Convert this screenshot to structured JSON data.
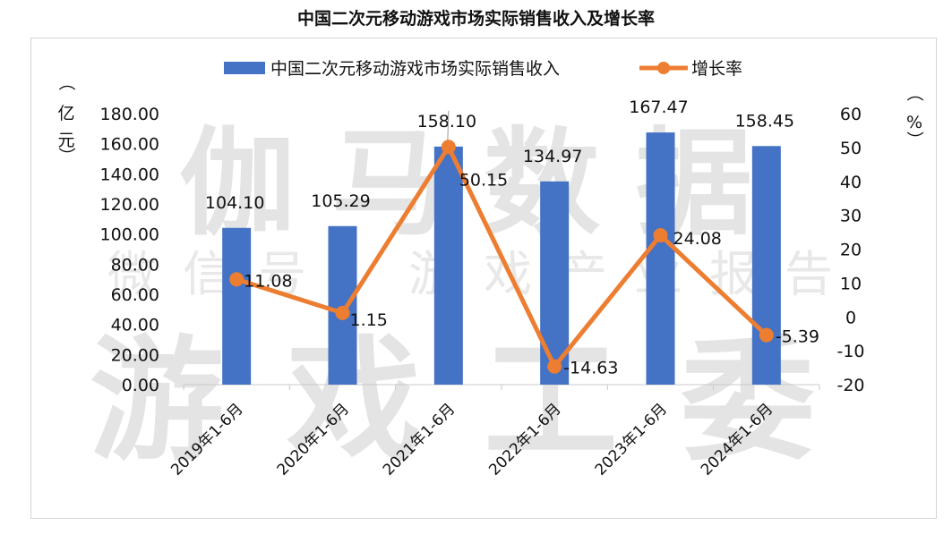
{
  "title": "中国二次元移动游戏市场实际销售收入及增长率",
  "watermark": {
    "line1": "伽马数据",
    "line2": "微信号：游戏产业报告",
    "line3": "游戏工委"
  },
  "units": {
    "left_top": "（",
    "left_chars": [
      "亿",
      "元"
    ],
    "left_bottom": "）",
    "right_top": "（",
    "right_char": "%",
    "right_bottom": "）"
  },
  "chart_data": {
    "type": "bar",
    "title": "中国二次元移动游戏市场实际销售收入及增长率",
    "categories": [
      "2019年1-6月",
      "2020年1-6月",
      "2021年1-6月",
      "2022年1-6月",
      "2023年1-6月",
      "2024年1-6月"
    ],
    "series": [
      {
        "name": "中国二次元移动游戏市场实际销售收入",
        "type": "bar",
        "axis": "left",
        "values": [
          104.1,
          105.29,
          158.1,
          134.97,
          167.47,
          158.45
        ],
        "labels": [
          "104.10",
          "105.29",
          "158.10",
          "134.97",
          "167.47",
          "158.45"
        ],
        "color": "#4472c4"
      },
      {
        "name": "增长率",
        "type": "line",
        "axis": "right",
        "values": [
          11.08,
          1.15,
          50.15,
          -14.63,
          24.08,
          -5.39
        ],
        "labels": [
          "11.08",
          "1.15",
          "50.15",
          "-14.63",
          "24.08",
          "-5.39"
        ],
        "color": "#ed7d31"
      }
    ],
    "y_left": {
      "min": 0,
      "max": 180,
      "ticks": [
        "0.00",
        "20.00",
        "40.00",
        "60.00",
        "80.00",
        "100.00",
        "120.00",
        "140.00",
        "160.00",
        "180.00"
      ],
      "label": "亿元"
    },
    "y_right": {
      "min": -20,
      "max": 60,
      "ticks": [
        "-20",
        "-10",
        "0",
        "10",
        "20",
        "30",
        "40",
        "50",
        "60"
      ],
      "label": "%"
    },
    "legend_position": "top",
    "grid": false
  }
}
